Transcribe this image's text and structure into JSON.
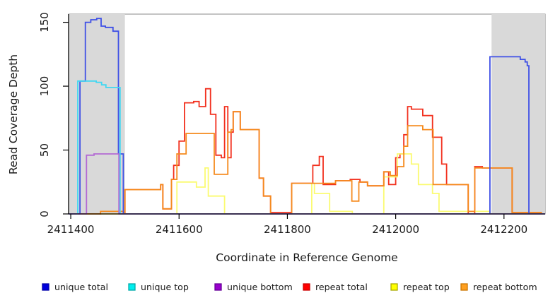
{
  "chart_data": {
    "type": "line",
    "title": "",
    "xlabel": "Coordinate in Reference Genome",
    "ylabel": "Read Coverage Depth",
    "xlim": [
      2411396,
      2412276
    ],
    "ylim": [
      0,
      156.4
    ],
    "grid": false,
    "legend_position": "bottom",
    "background_color": "#ffffff",
    "box_color": "#888888",
    "axis_color": "#000000",
    "highlight_color": "#d9d9d9",
    "highlight_regions": [
      {
        "start": 2411397,
        "end": 2411500
      },
      {
        "start": 2412177,
        "end": 2412276
      }
    ],
    "xticks": [
      {
        "value": 2411400,
        "label": "2411400"
      },
      {
        "value": 2411600,
        "label": "2411600"
      },
      {
        "value": 2411800,
        "label": "2411800"
      },
      {
        "value": 2412000,
        "label": "2412000"
      },
      {
        "value": 2412200,
        "label": "2412200"
      }
    ],
    "yticks": [
      {
        "value": 0,
        "label": "0"
      },
      {
        "value": 50,
        "label": "50"
      },
      {
        "value": 100,
        "label": "100"
      },
      {
        "value": 150,
        "label": "150"
      }
    ],
    "draw_order": [
      3,
      4,
      5,
      0,
      1,
      2
    ],
    "series": [
      {
        "name": "unique total",
        "color": "#3f50e6",
        "swatch": "#0000dd",
        "swatch_border": "#0000aa",
        "segments": [
          [
            2411396,
            2411417,
            0
          ],
          [
            2411417,
            2411427,
            104
          ],
          [
            2411427,
            2411437,
            150
          ],
          [
            2411437,
            2411448,
            152
          ],
          [
            2411448,
            2411456,
            153
          ],
          [
            2411456,
            2411464,
            147
          ],
          [
            2411464,
            2411478,
            146
          ],
          [
            2411478,
            2411488,
            143
          ],
          [
            2411488,
            2411497,
            47
          ],
          [
            2411497,
            2412174,
            0
          ],
          [
            2412174,
            2412230,
            123
          ],
          [
            2412230,
            2412239,
            121
          ],
          [
            2412239,
            2412243,
            119
          ],
          [
            2412243,
            2412246,
            116
          ],
          [
            2412246,
            2412276,
            0
          ]
        ]
      },
      {
        "name": "unique top",
        "color": "#3fd8f2",
        "swatch": "#00eeee",
        "swatch_border": "#00aaaa",
        "segments": [
          [
            2411396,
            2411413,
            0
          ],
          [
            2411413,
            2411447,
            104
          ],
          [
            2411447,
            2411457,
            103
          ],
          [
            2411457,
            2411465,
            101
          ],
          [
            2411465,
            2411491,
            99
          ],
          [
            2411491,
            2412276,
            0
          ]
        ]
      },
      {
        "name": "unique bottom",
        "color": "#b36ad4",
        "swatch": "#9900cc",
        "swatch_border": "#660099",
        "segments": [
          [
            2411396,
            2411429,
            0
          ],
          [
            2411429,
            2411443,
            46
          ],
          [
            2411443,
            2411489,
            47
          ],
          [
            2411489,
            2412276,
            0
          ]
        ]
      },
      {
        "name": "repeat total",
        "color": "#f2301e",
        "swatch": "#ff0000",
        "swatch_border": "#cc0000",
        "segments": [
          [
            2411396,
            2411500,
            0
          ],
          [
            2411500,
            2411566,
            19
          ],
          [
            2411566,
            2411570,
            23
          ],
          [
            2411570,
            2411586,
            4
          ],
          [
            2411586,
            2411590,
            27
          ],
          [
            2411590,
            2411600,
            38
          ],
          [
            2411600,
            2411610,
            57
          ],
          [
            2411610,
            2411627,
            87
          ],
          [
            2411627,
            2411637,
            88
          ],
          [
            2411637,
            2411649,
            84
          ],
          [
            2411649,
            2411658,
            98
          ],
          [
            2411658,
            2411668,
            78
          ],
          [
            2411668,
            2411678,
            46
          ],
          [
            2411678,
            2411684,
            44
          ],
          [
            2411684,
            2411690,
            84
          ],
          [
            2411690,
            2411696,
            44
          ],
          [
            2411696,
            2411700,
            64
          ],
          [
            2411700,
            2411713,
            80
          ],
          [
            2411713,
            2411748,
            66
          ],
          [
            2411748,
            2411756,
            28
          ],
          [
            2411756,
            2411769,
            14
          ],
          [
            2411769,
            2411808,
            1
          ],
          [
            2411808,
            2411847,
            24
          ],
          [
            2411847,
            2411859,
            38
          ],
          [
            2411859,
            2411866,
            45
          ],
          [
            2411866,
            2411889,
            23
          ],
          [
            2411889,
            2411916,
            26
          ],
          [
            2411916,
            2411934,
            27
          ],
          [
            2411934,
            2411948,
            25
          ],
          [
            2411948,
            2411978,
            22
          ],
          [
            2411978,
            2411987,
            33
          ],
          [
            2411987,
            2412000,
            23
          ],
          [
            2412000,
            2412008,
            44
          ],
          [
            2412008,
            2412015,
            47
          ],
          [
            2412015,
            2412022,
            62
          ],
          [
            2412022,
            2412029,
            84
          ],
          [
            2412029,
            2412050,
            82
          ],
          [
            2412050,
            2412068,
            77
          ],
          [
            2412068,
            2412085,
            60
          ],
          [
            2412085,
            2412094,
            39
          ],
          [
            2412094,
            2412134,
            23
          ],
          [
            2412134,
            2412146,
            0
          ],
          [
            2412146,
            2412160,
            37
          ],
          [
            2412160,
            2412215,
            36
          ],
          [
            2412215,
            2412270,
            1
          ]
        ]
      },
      {
        "name": "repeat top",
        "color": "#fbfb72",
        "swatch": "#ffff00",
        "swatch_border": "#aaaa00",
        "segments": [
          [
            2411396,
            2411596,
            0
          ],
          [
            2411596,
            2411632,
            25
          ],
          [
            2411632,
            2411648,
            21
          ],
          [
            2411648,
            2411654,
            36
          ],
          [
            2411654,
            2411684,
            14
          ],
          [
            2411684,
            2411845,
            0
          ],
          [
            2411845,
            2411850,
            24
          ],
          [
            2411850,
            2411878,
            16
          ],
          [
            2411878,
            2411920,
            2
          ],
          [
            2411920,
            2411978,
            0
          ],
          [
            2411978,
            2412003,
            29
          ],
          [
            2412003,
            2412029,
            47
          ],
          [
            2412029,
            2412042,
            39
          ],
          [
            2412042,
            2412068,
            23
          ],
          [
            2412068,
            2412080,
            16
          ],
          [
            2412080,
            2412174,
            2
          ],
          [
            2412174,
            2412276,
            0
          ]
        ]
      },
      {
        "name": "repeat bottom",
        "color": "#f58a1d",
        "swatch": "#ffa020",
        "swatch_border": "#cc7700",
        "segments": [
          [
            2411396,
            2411455,
            0
          ],
          [
            2411455,
            2411497,
            2
          ],
          [
            2411497,
            2411500,
            0
          ],
          [
            2411500,
            2411566,
            19
          ],
          [
            2411566,
            2411570,
            23
          ],
          [
            2411570,
            2411586,
            4
          ],
          [
            2411586,
            2411596,
            27
          ],
          [
            2411596,
            2411613,
            47
          ],
          [
            2411613,
            2411665,
            63
          ],
          [
            2411665,
            2411690,
            31
          ],
          [
            2411690,
            2411696,
            64
          ],
          [
            2411696,
            2411700,
            66
          ],
          [
            2411700,
            2411713,
            80
          ],
          [
            2411713,
            2411748,
            66
          ],
          [
            2411748,
            2411756,
            28
          ],
          [
            2411756,
            2411769,
            14
          ],
          [
            2411769,
            2411808,
            0
          ],
          [
            2411808,
            2411889,
            24
          ],
          [
            2411889,
            2411919,
            26
          ],
          [
            2411919,
            2411932,
            10
          ],
          [
            2411932,
            2411948,
            25
          ],
          [
            2411948,
            2411978,
            22
          ],
          [
            2411978,
            2411990,
            33
          ],
          [
            2411990,
            2412003,
            30
          ],
          [
            2412003,
            2412015,
            37
          ],
          [
            2412015,
            2412022,
            53
          ],
          [
            2412022,
            2412050,
            69
          ],
          [
            2412050,
            2412069,
            66
          ],
          [
            2412069,
            2412134,
            23
          ],
          [
            2412134,
            2412146,
            2
          ],
          [
            2412146,
            2412215,
            36
          ],
          [
            2412215,
            2412270,
            1
          ]
        ]
      }
    ]
  }
}
